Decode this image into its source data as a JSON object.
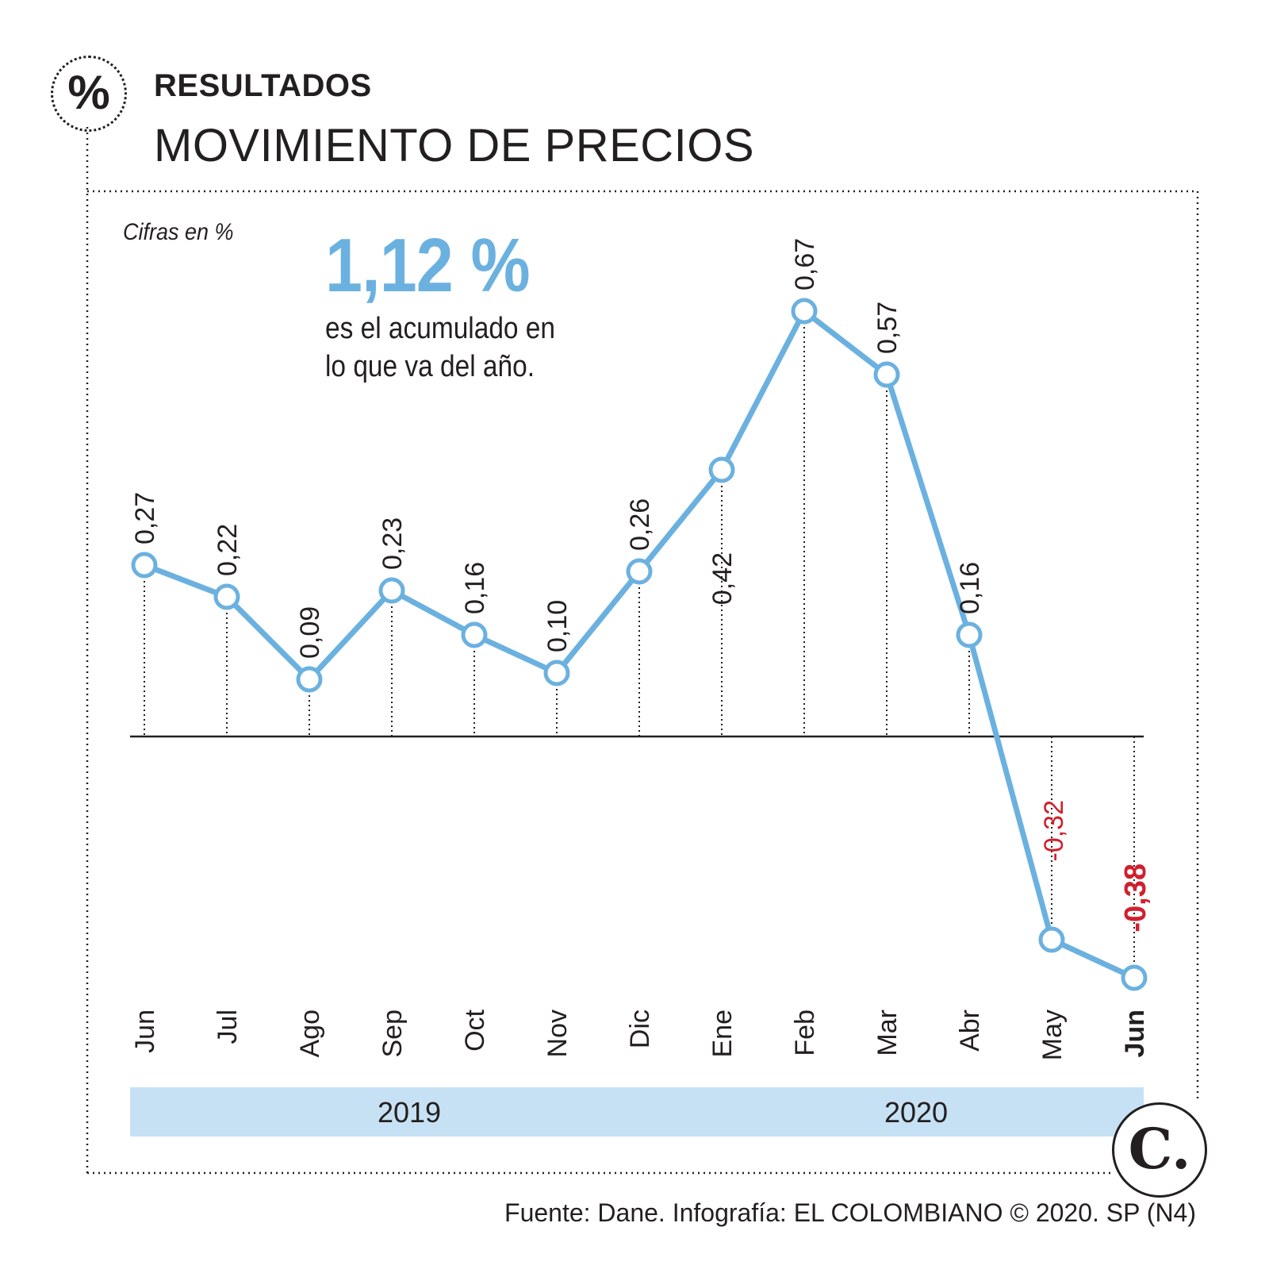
{
  "header": {
    "label": "RESULTADOS",
    "title": "MOVIMIENTO DE PRECIOS",
    "badge_symbol": "%"
  },
  "unit_note": "Cifras en %",
  "highlight": {
    "value": "1,12 %",
    "line1": "es el acumulado en",
    "line2": "lo que va del año."
  },
  "colors": {
    "line": "#6bb1e0",
    "year_band": "#c7e1f4",
    "negative": "#d0202e",
    "text": "#231f20"
  },
  "chart_data": {
    "type": "line",
    "categories": [
      "Jun",
      "Jul",
      "Ago",
      "Sep",
      "Oct",
      "Nov",
      "Dic",
      "Ene",
      "Feb",
      "Mar",
      "Abr",
      "May",
      "Jun"
    ],
    "values": [
      0.27,
      0.22,
      0.09,
      0.23,
      0.16,
      0.1,
      0.26,
      0.42,
      0.67,
      0.57,
      0.16,
      -0.32,
      -0.38
    ],
    "value_labels": [
      "0,27",
      "0,22",
      "0,09",
      "0,23",
      "0,16",
      "0,10",
      "0,26",
      "0,42",
      "0,67",
      "0,57",
      "0,16",
      "-0,32",
      "-0,38"
    ],
    "highlight_index": 12,
    "years": [
      {
        "label": "2019",
        "from_index": 0,
        "to_index": 6
      },
      {
        "label": "2020",
        "from_index": 7,
        "to_index": 12
      }
    ],
    "ylim": [
      -0.38,
      0.67
    ],
    "grid": false,
    "xlabel": "",
    "ylabel": ""
  },
  "source": "Fuente: Dane. Infografía: EL COLOMBIANO © 2020. SP (N4)",
  "logo_text": "C."
}
